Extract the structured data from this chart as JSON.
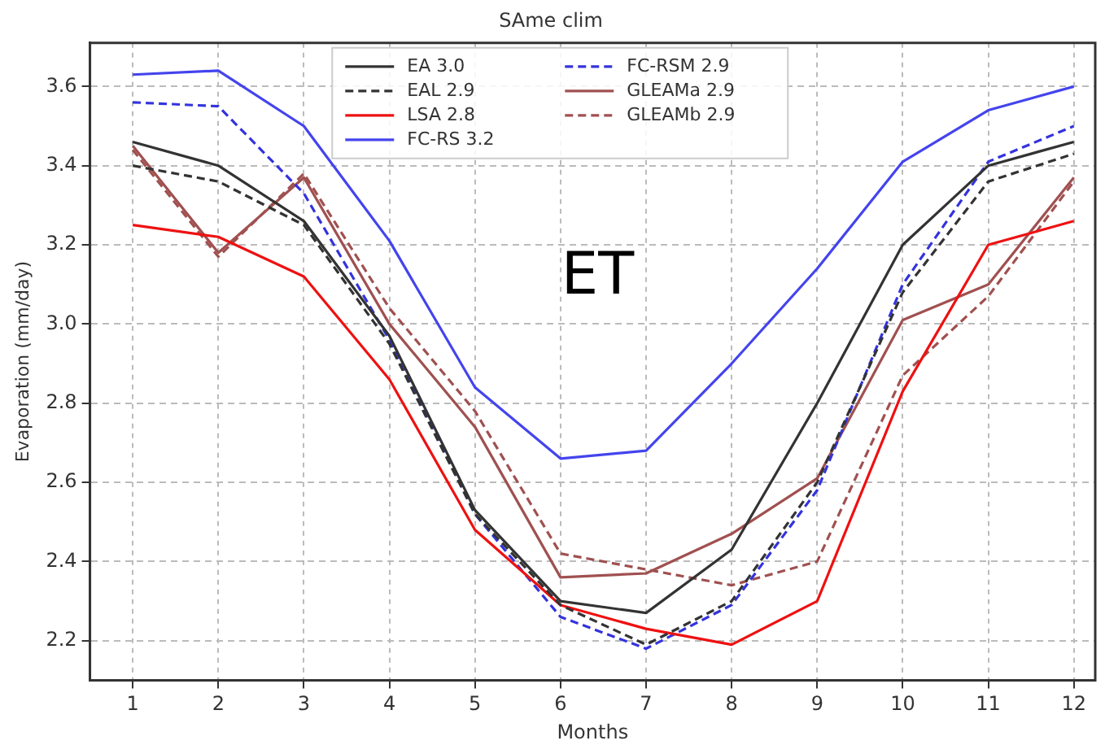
{
  "chart_data": {
    "type": "line",
    "title": "SAme clim",
    "xlabel": "Months",
    "ylabel": "Evaporation (mm/day)",
    "annotations": [
      "ET"
    ],
    "x": [
      1,
      2,
      3,
      4,
      5,
      6,
      7,
      8,
      9,
      10,
      11,
      12
    ],
    "series": [
      {
        "name": "EA 3.0",
        "color": "#333333",
        "line_style": "solid",
        "values": [
          3.46,
          3.4,
          3.26,
          2.97,
          2.53,
          2.3,
          2.27,
          2.43,
          2.8,
          3.2,
          3.4,
          3.46
        ]
      },
      {
        "name": "EAL 2.9",
        "color": "#333333",
        "line_style": "dashed",
        "values": [
          3.4,
          3.36,
          3.25,
          2.95,
          2.52,
          2.29,
          2.19,
          2.3,
          2.6,
          3.08,
          3.36,
          3.43
        ]
      },
      {
        "name": "LSA 2.8",
        "color": "#ee1111",
        "line_style": "solid",
        "values": [
          3.25,
          3.22,
          3.12,
          2.86,
          2.48,
          2.29,
          2.23,
          2.19,
          2.3,
          2.83,
          3.2,
          3.26
        ]
      },
      {
        "name": "FC-RS 3.2",
        "color": "#4444ee",
        "line_style": "solid",
        "values": [
          3.63,
          3.64,
          3.5,
          3.21,
          2.84,
          2.66,
          2.68,
          2.9,
          3.14,
          3.41,
          3.54,
          3.6
        ]
      },
      {
        "name": "FC-RSM 2.9",
        "color": "#3333dd",
        "line_style": "dashed",
        "values": [
          3.56,
          3.55,
          3.33,
          2.96,
          2.52,
          2.26,
          2.18,
          2.29,
          2.58,
          3.1,
          3.41,
          3.5
        ]
      },
      {
        "name": "GLEAMa 2.9",
        "color": "#a05050",
        "line_style": "solid",
        "values": [
          3.45,
          3.18,
          3.37,
          3.0,
          2.74,
          2.36,
          2.37,
          2.47,
          2.61,
          3.01,
          3.1,
          3.37
        ]
      },
      {
        "name": "GLEAMb 2.9",
        "color": "#a05050",
        "line_style": "dashed",
        "values": [
          3.44,
          3.17,
          3.38,
          3.04,
          2.78,
          2.42,
          2.38,
          2.34,
          2.4,
          2.87,
          3.07,
          3.36
        ]
      }
    ],
    "xlim": [
      0.5,
      12.25
    ],
    "xticks": [
      1,
      2,
      3,
      4,
      5,
      6,
      7,
      8,
      9,
      10,
      11,
      12
    ],
    "ylim": [
      2.1,
      3.71
    ],
    "yticks": [
      2.2,
      2.4,
      2.6,
      2.8,
      {
        "value": 3,
        "label": "3.0"
      },
      3.2,
      3.4,
      3.6
    ],
    "grid": true,
    "legend": "top",
    "marker": "none"
  }
}
